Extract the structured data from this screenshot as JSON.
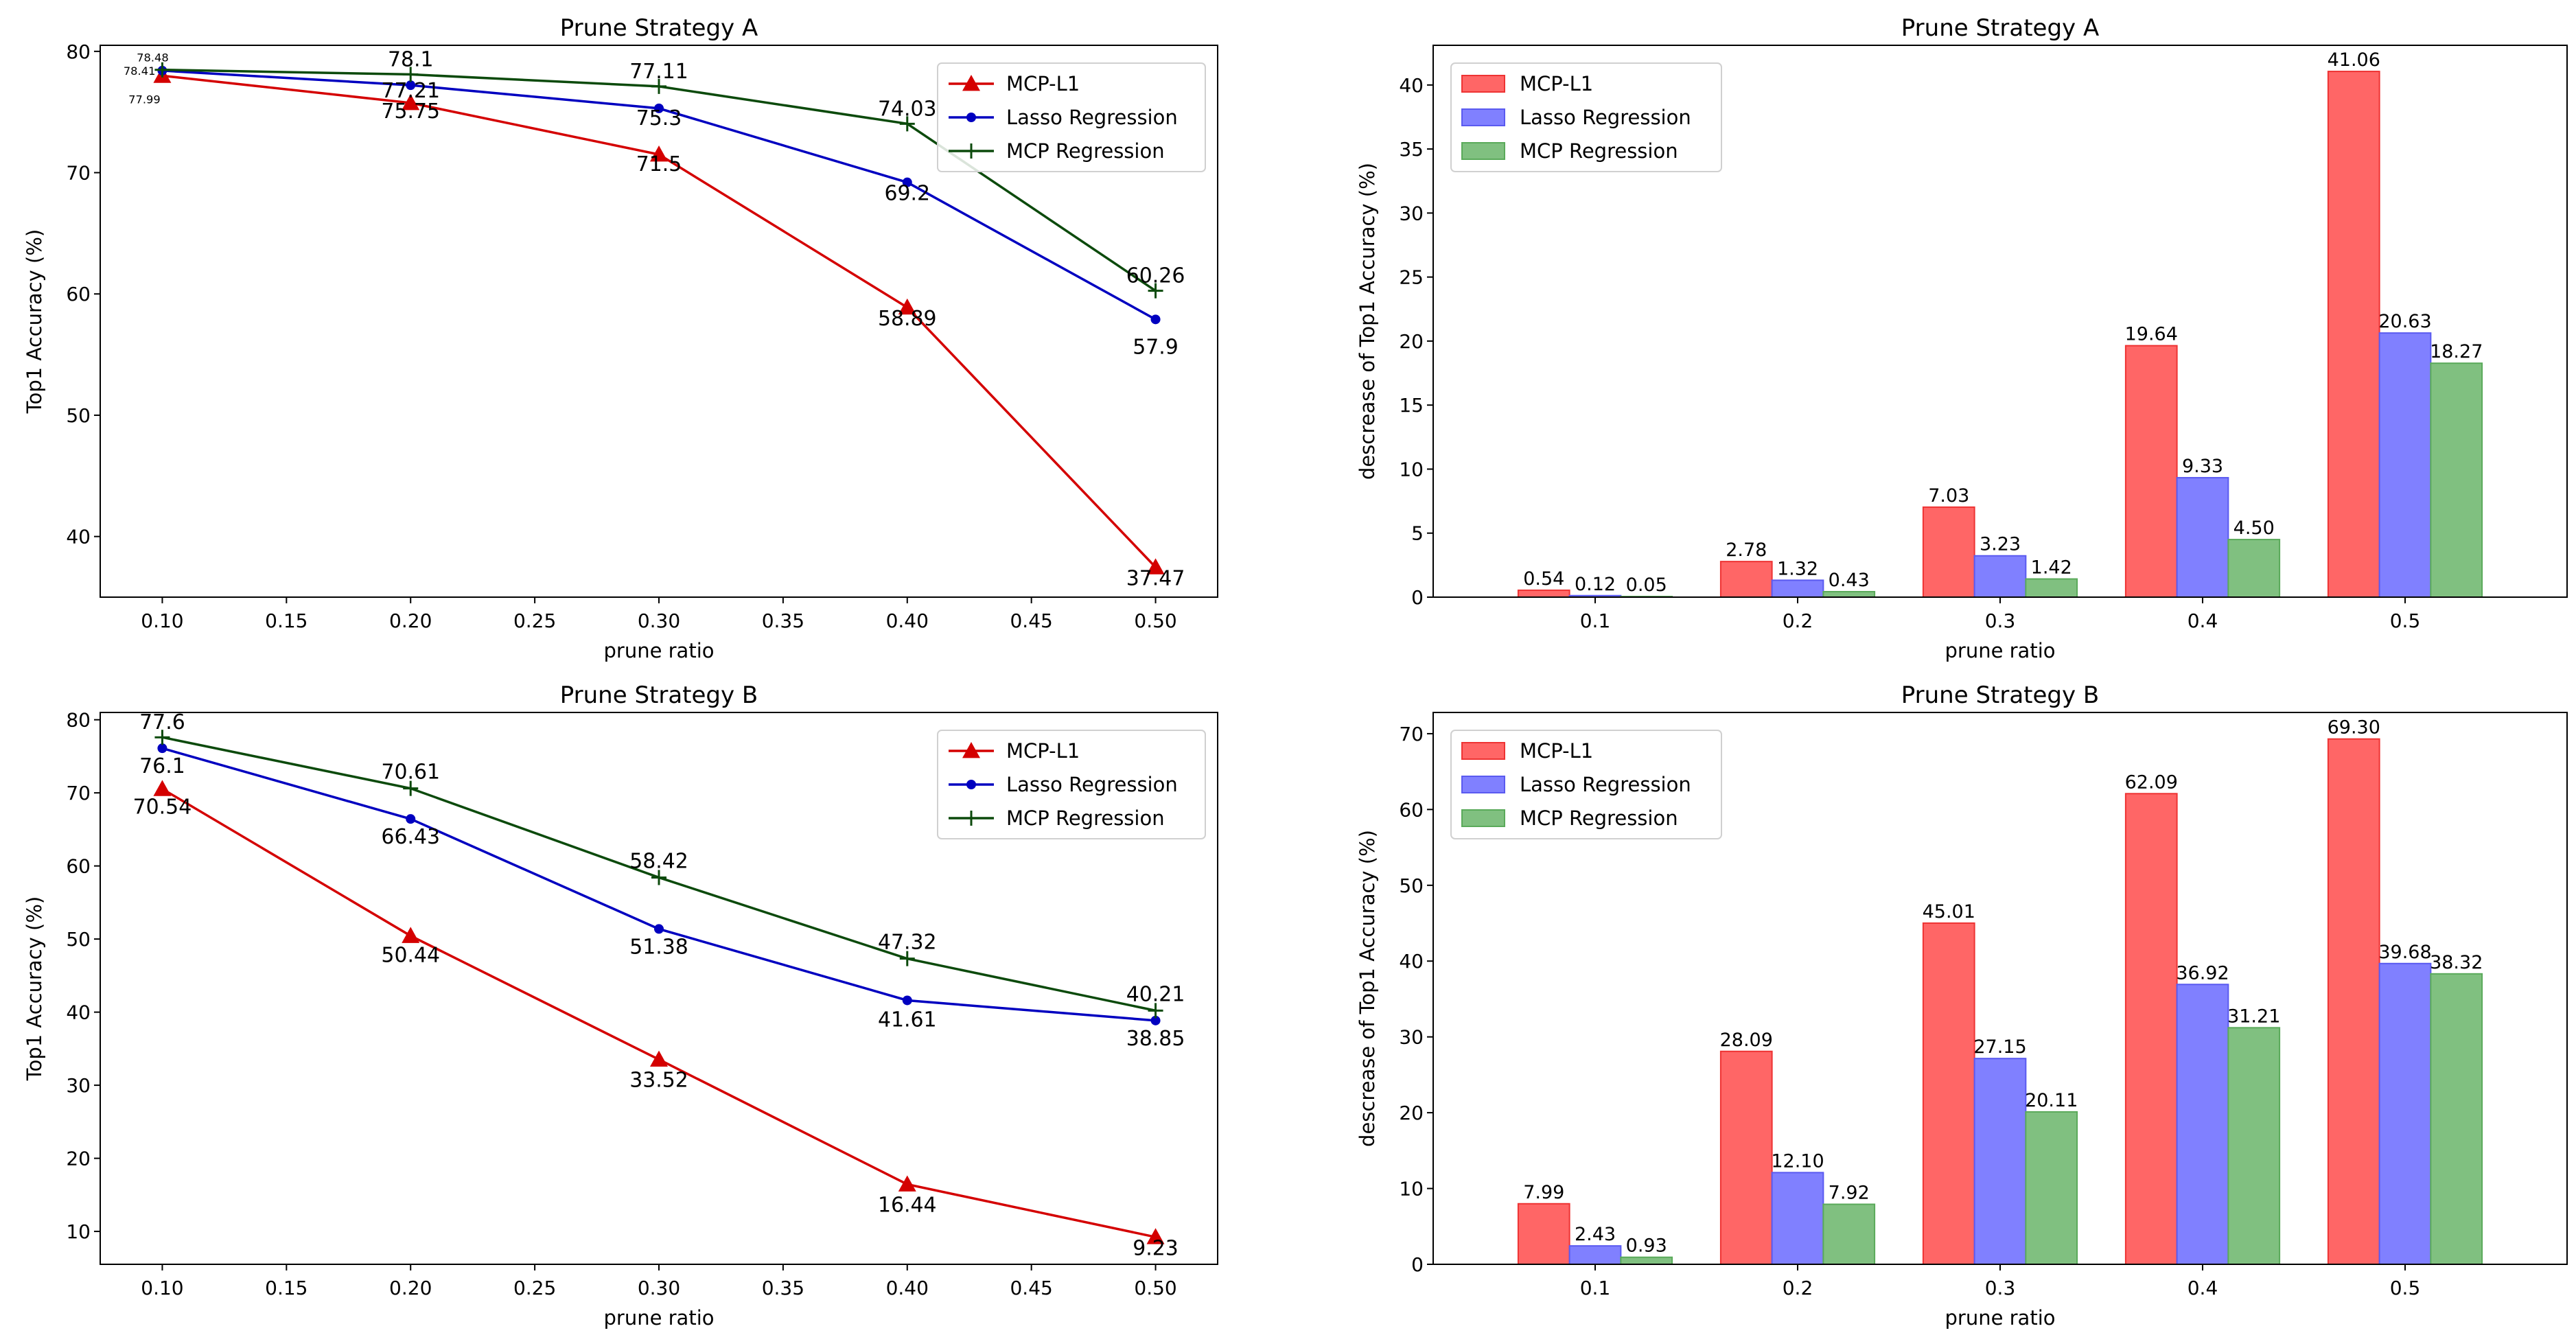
{
  "chart_data": [
    {
      "type": "line",
      "title": "Prune Strategy A",
      "xlabel": "prune ratio",
      "ylabel": "Top1 Accuracy (%)",
      "xlim": [
        0.075,
        0.525
      ],
      "ylim": [
        35,
        80.5
      ],
      "xticks": [
        0.1,
        0.15,
        0.2,
        0.25,
        0.3,
        0.35,
        0.4,
        0.45,
        0.5
      ],
      "xtick_labels": [
        "0.10",
        "0.15",
        "0.20",
        "0.25",
        "0.30",
        "0.35",
        "0.40",
        "0.45",
        "0.50"
      ],
      "yticks": [
        40,
        50,
        60,
        70,
        80
      ],
      "ytick_labels": [
        "40",
        "50",
        "60",
        "70",
        "80"
      ],
      "legend_position": "top-right",
      "x": [
        0.1,
        0.2,
        0.3,
        0.4,
        0.5
      ],
      "series": [
        {
          "name": "MCP-L1",
          "color": "#d40000",
          "marker": "triangle",
          "values": [
            77.99,
            75.75,
            71.5,
            58.89,
            37.47
          ],
          "labels": [
            "77.99",
            "75.75",
            "71.5",
            "58.89",
            "37.47"
          ]
        },
        {
          "name": "Lasso Regression",
          "color": "#0000c0",
          "marker": "dot",
          "values": [
            78.41,
            77.21,
            75.3,
            69.2,
            57.9
          ],
          "labels": [
            "78.41",
            "77.21",
            "75.3",
            "69.2",
            "57.9"
          ]
        },
        {
          "name": "MCP Regression",
          "color": "#0c4a0c",
          "marker": "plus",
          "values": [
            78.48,
            78.1,
            77.11,
            74.03,
            60.26
          ],
          "labels": [
            "78.48",
            "78.1",
            "77.11",
            "74.03",
            "60.26"
          ]
        }
      ]
    },
    {
      "type": "bar",
      "title": "Prune Strategy A",
      "xlabel": "prune ratio",
      "ylabel": "descrease of Top1 Accuracy (%)",
      "categories": [
        "0.1",
        "0.2",
        "0.3",
        "0.4",
        "0.5"
      ],
      "ylim": [
        0,
        43.1
      ],
      "yticks": [
        0,
        5,
        10,
        15,
        20,
        25,
        30,
        35,
        40
      ],
      "ytick_labels": [
        "0",
        "5",
        "10",
        "15",
        "20",
        "25",
        "30",
        "35",
        "40"
      ],
      "legend_position": "top-left",
      "series": [
        {
          "name": "MCP-L1",
          "color": "#ff6666",
          "edge": "#ee3333",
          "values": [
            0.54,
            2.78,
            7.03,
            19.64,
            41.06
          ],
          "labels": [
            "0.54",
            "2.78",
            "7.03",
            "19.64",
            "41.06"
          ]
        },
        {
          "name": "Lasso Regression",
          "color": "#8080ff",
          "edge": "#5a5af0",
          "values": [
            0.12,
            1.32,
            3.23,
            9.33,
            20.63
          ],
          "labels": [
            "0.12",
            "1.32",
            "3.23",
            "9.33",
            "20.63"
          ]
        },
        {
          "name": "MCP Regression",
          "color": "#80c080",
          "edge": "#5aaa5a",
          "values": [
            0.05,
            0.43,
            1.42,
            4.5,
            18.27
          ],
          "labels": [
            "0.05",
            "0.43",
            "1.42",
            "4.50",
            "18.27"
          ]
        }
      ]
    },
    {
      "type": "line",
      "title": "Prune Strategy B",
      "xlabel": "prune ratio",
      "ylabel": "Top1 Accuracy (%)",
      "xlim": [
        0.075,
        0.525
      ],
      "ylim": [
        5.5,
        81
      ],
      "xticks": [
        0.1,
        0.15,
        0.2,
        0.25,
        0.3,
        0.35,
        0.4,
        0.45,
        0.5
      ],
      "xtick_labels": [
        "0.10",
        "0.15",
        "0.20",
        "0.25",
        "0.30",
        "0.35",
        "0.40",
        "0.45",
        "0.50"
      ],
      "yticks": [
        10,
        20,
        30,
        40,
        50,
        60,
        70,
        80
      ],
      "ytick_labels": [
        "10",
        "20",
        "30",
        "40",
        "50",
        "60",
        "70",
        "80"
      ],
      "legend_position": "top-right",
      "x": [
        0.1,
        0.2,
        0.3,
        0.4,
        0.5
      ],
      "series": [
        {
          "name": "MCP-L1",
          "color": "#d40000",
          "marker": "triangle",
          "values": [
            70.54,
            50.44,
            33.52,
            16.44,
            9.23
          ],
          "labels": [
            "70.54",
            "50.44",
            "33.52",
            "16.44",
            "9.23"
          ]
        },
        {
          "name": "Lasso Regression",
          "color": "#0000c0",
          "marker": "dot",
          "values": [
            76.1,
            66.43,
            51.38,
            41.61,
            38.85
          ],
          "labels": [
            "76.1",
            "66.43",
            "51.38",
            "41.61",
            "38.85"
          ]
        },
        {
          "name": "MCP Regression",
          "color": "#0c4a0c",
          "marker": "plus",
          "values": [
            77.6,
            70.61,
            58.42,
            47.32,
            40.21
          ],
          "labels": [
            "77.6",
            "70.61",
            "58.42",
            "47.32",
            "40.21"
          ]
        }
      ]
    },
    {
      "type": "bar",
      "title": "Prune Strategy B",
      "xlabel": "prune ratio",
      "ylabel": "descrease of Top1 Accuracy (%)",
      "categories": [
        "0.1",
        "0.2",
        "0.3",
        "0.4",
        "0.5"
      ],
      "ylim": [
        0,
        72.8
      ],
      "yticks": [
        0,
        10,
        20,
        30,
        40,
        50,
        60,
        70
      ],
      "ytick_labels": [
        "0",
        "10",
        "20",
        "30",
        "40",
        "50",
        "60",
        "70"
      ],
      "legend_position": "top-left",
      "series": [
        {
          "name": "MCP-L1",
          "color": "#ff6666",
          "edge": "#ee3333",
          "values": [
            7.99,
            28.09,
            45.01,
            62.09,
            69.3
          ],
          "labels": [
            "7.99",
            "28.09",
            "45.01",
            "62.09",
            "69.30"
          ]
        },
        {
          "name": "Lasso Regression",
          "color": "#8080ff",
          "edge": "#5a5af0",
          "values": [
            2.43,
            12.1,
            27.15,
            36.92,
            39.68
          ],
          "labels": [
            "2.43",
            "12.10",
            "27.15",
            "36.92",
            "39.68"
          ]
        },
        {
          "name": "MCP Regression",
          "color": "#80c080",
          "edge": "#5aaa5a",
          "values": [
            0.93,
            7.92,
            20.11,
            31.21,
            38.32
          ],
          "labels": [
            "0.93",
            "7.92",
            "20.11",
            "31.21",
            "38.32"
          ]
        }
      ]
    }
  ]
}
